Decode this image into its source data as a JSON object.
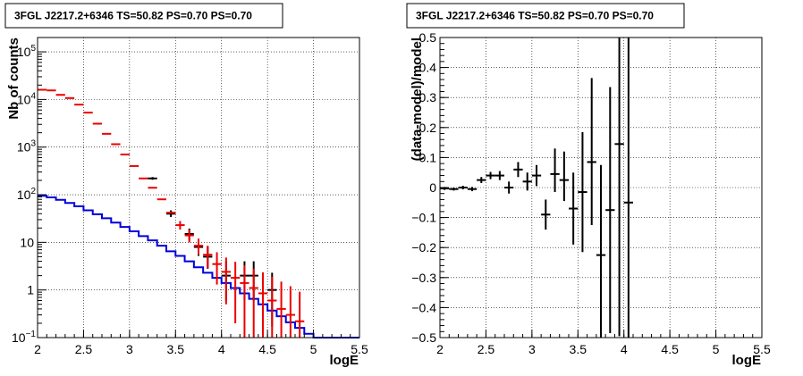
{
  "chart_data": [
    {
      "type": "line",
      "title": "3FGL J2217.2+6346 TS=50.82 PS=0.70 PS=0.70",
      "xlabel": "logE",
      "ylabel": "Nb of counts",
      "xlim": [
        2,
        5.5
      ],
      "ylim": [
        0.1,
        200000
      ],
      "yscale": "log",
      "grid": true,
      "x_ticks": [
        "2",
        "2.5",
        "3",
        "3.5",
        "4",
        "4.5",
        "5",
        "5.5"
      ],
      "y_ticks": [
        {
          "value": 0.1,
          "base": "10",
          "exp": "−1"
        },
        {
          "value": 1,
          "base": "1",
          "exp": ""
        },
        {
          "value": 10,
          "base": "10",
          "exp": ""
        },
        {
          "value": 100,
          "base": "10",
          "exp": "2"
        },
        {
          "value": 1000,
          "base": "10",
          "exp": "3"
        },
        {
          "value": 10000,
          "base": "10",
          "exp": "4"
        },
        {
          "value": 100000,
          "base": "10",
          "exp": "5"
        }
      ],
      "series": [
        {
          "role": "data-points",
          "color": "#000000",
          "bin_halfwidth": 0.05,
          "x": [
            3.25,
            3.45,
            3.65,
            3.75,
            3.85,
            4.05,
            4.25,
            4.35,
            4.55
          ],
          "y": [
            220,
            40,
            15,
            8,
            5,
            2,
            2,
            2,
            1
          ],
          "yerr_lo": [
            14,
            6,
            3.8,
            2.8,
            2.2,
            1.4,
            1.4,
            1.4,
            0.83
          ],
          "yerr_hi": [
            15,
            7,
            4.5,
            3.5,
            3.0,
            2.0,
            2.0,
            2.0,
            1.3
          ]
        },
        {
          "role": "model-total",
          "color": "#ee0000",
          "bin_halfwidth": 0.05,
          "x": [
            2.05,
            2.15,
            2.25,
            2.35,
            2.45,
            2.55,
            2.65,
            2.75,
            2.85,
            2.95,
            3.05,
            3.15,
            3.25,
            3.35,
            3.45,
            3.55,
            3.65,
            3.75,
            3.85,
            3.95,
            4.05,
            4.15,
            4.25,
            4.35,
            4.45,
            4.55,
            4.65,
            4.75,
            4.85
          ],
          "y": [
            16000,
            15500,
            12500,
            10700,
            7800,
            5300,
            3100,
            1900,
            1150,
            700,
            400,
            220,
            140,
            80,
            42,
            23,
            14,
            8.5,
            5.5,
            3.5,
            2.4,
            1.8,
            1.4,
            1.1,
            0.85,
            0.6,
            0.4,
            0.3,
            0.22
          ],
          "yerr_lo": [
            0,
            0,
            0,
            0,
            0,
            0,
            0,
            0,
            0,
            0,
            0,
            0,
            0,
            0,
            0,
            4.5,
            4,
            3,
            2.6,
            2.2,
            1.9,
            1.6,
            1.3,
            1.0,
            0.8,
            0.56,
            0.38,
            0.29,
            0.21
          ],
          "yerr_hi": [
            0,
            0,
            0,
            0,
            0,
            0,
            0,
            0,
            0,
            0,
            0,
            0,
            0,
            0,
            0,
            5,
            4.5,
            3.5,
            3,
            2.7,
            2.4,
            2.1,
            1.9,
            1.7,
            1.5,
            1.3,
            1.1,
            0.9,
            0.7
          ]
        },
        {
          "role": "model-source",
          "color": "#0000dd",
          "step": true,
          "bin_edges": [
            2.0,
            2.1,
            2.2,
            2.3,
            2.4,
            2.5,
            2.6,
            2.7,
            2.8,
            2.9,
            3.0,
            3.1,
            3.2,
            3.3,
            3.4,
            3.5,
            3.6,
            3.7,
            3.8,
            3.9,
            4.0,
            4.1,
            4.2,
            4.3,
            4.4,
            4.5,
            4.6,
            4.7,
            4.8,
            4.9,
            5.0,
            5.1,
            5.2,
            5.3,
            5.4,
            5.5
          ],
          "y": [
            95,
            88,
            78,
            67,
            57,
            47,
            39,
            32,
            26,
            21,
            17,
            13.5,
            11,
            8.5,
            6.5,
            5.2,
            4.0,
            3.0,
            2.3,
            1.8,
            1.4,
            1.1,
            0.85,
            0.65,
            0.5,
            0.37,
            0.28,
            0.21,
            0.16,
            0.12,
            0.1,
            0.1,
            0.1,
            0.1,
            0.1
          ]
        }
      ]
    },
    {
      "type": "scatter",
      "title": "3FGL J2217.2+6346 TS=50.82 PS=0.70 PS=0.70",
      "xlabel": "logE",
      "ylabel": "(data-model)/model",
      "xlim": [
        2,
        5.5
      ],
      "ylim": [
        -0.5,
        0.5
      ],
      "grid": true,
      "x_ticks": [
        "2",
        "2.5",
        "3",
        "3.5",
        "4",
        "4.5",
        "5",
        "5.5"
      ],
      "y_ticks": [
        "−0.5",
        "−0.4",
        "−0.3",
        "−0.2",
        "−0.1",
        "0",
        "0.1",
        "0.2",
        "0.3",
        "0.4",
        "0.5"
      ],
      "y_tick_values": [
        -0.5,
        -0.4,
        -0.3,
        -0.2,
        -0.1,
        0,
        0.1,
        0.2,
        0.3,
        0.4,
        0.5
      ],
      "series": [
        {
          "color": "#000000",
          "bin_halfwidth": 0.05,
          "x": [
            2.05,
            2.15,
            2.25,
            2.35,
            2.45,
            2.55,
            2.65,
            2.75,
            2.85,
            2.95,
            3.05,
            3.15,
            3.25,
            3.35,
            3.45,
            3.55,
            3.65,
            3.75,
            3.85,
            3.95,
            4.05
          ],
          "y": [
            -0.003,
            -0.005,
            0.0,
            -0.005,
            0.025,
            0.04,
            0.04,
            0.0,
            0.06,
            0.02,
            0.04,
            -0.09,
            0.045,
            0.025,
            -0.07,
            -0.015,
            0.085,
            -0.225,
            -0.075,
            0.145,
            -0.05
          ],
          "yerr_lo": [
            0.005,
            0.005,
            0.006,
            0.007,
            0.01,
            0.012,
            0.015,
            0.02,
            0.025,
            0.03,
            0.035,
            0.05,
            0.06,
            0.07,
            0.12,
            0.2,
            0.21,
            0.3,
            0.41,
            0.64,
            0.45
          ],
          "yerr_hi": [
            0.005,
            0.005,
            0.006,
            0.007,
            0.01,
            0.012,
            0.015,
            0.02,
            0.025,
            0.03,
            0.035,
            0.05,
            0.085,
            0.095,
            0.12,
            0.2,
            0.28,
            0.3,
            0.41,
            0.36,
            0.55
          ]
        }
      ]
    }
  ]
}
